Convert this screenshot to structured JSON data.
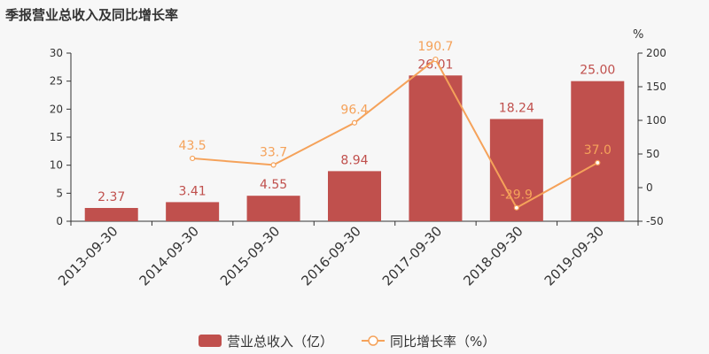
{
  "chart_data": {
    "type": "bar",
    "title": "季报营业总收入及同比增长率",
    "categories": [
      "2013-09-30",
      "2014-09-30",
      "2015-09-30",
      "2016-09-30",
      "2017-09-30",
      "2018-09-30",
      "2019-09-30"
    ],
    "series": [
      {
        "name": "营业总收入（亿）",
        "type": "bar",
        "axis": "left",
        "color": "#c0504d",
        "values": [
          2.37,
          3.41,
          4.55,
          8.94,
          26.01,
          18.24,
          25.0
        ],
        "labels": [
          "2.37",
          "3.41",
          "4.55",
          "8.94",
          "26.01",
          "18.24",
          "25.00"
        ]
      },
      {
        "name": "同比增长率（%）",
        "type": "line",
        "axis": "right",
        "color": "#f5a25a",
        "values": [
          null,
          43.5,
          33.7,
          96.4,
          190.7,
          -29.9,
          37.0
        ],
        "labels": [
          "",
          "43.5",
          "33.7",
          "96.4",
          "190.7",
          "-29.9",
          "37.0"
        ]
      }
    ],
    "y_left": {
      "min": 0,
      "max": 30,
      "ticks": [
        "0",
        "5",
        "10",
        "15",
        "20",
        "25",
        "30"
      ]
    },
    "y_right": {
      "min": -50,
      "max": 200,
      "unit": "%",
      "ticks": [
        "-50",
        "0",
        "50",
        "100",
        "150",
        "200"
      ]
    },
    "legend_position": "bottom-center",
    "grid": false
  }
}
